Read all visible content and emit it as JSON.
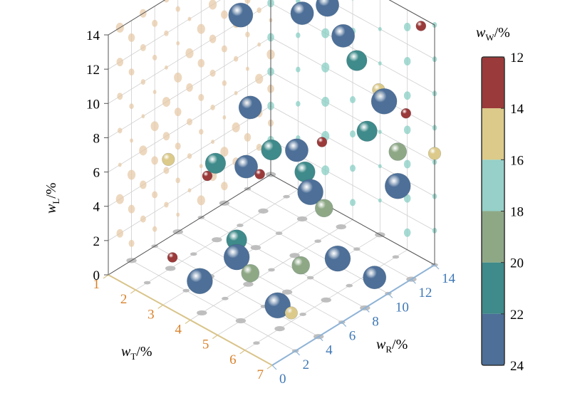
{
  "chart_data": {
    "type": "scatter",
    "x_axis": {
      "label": "w",
      "sub": "T",
      "unit": "/%",
      "ticks": [
        "1",
        "2",
        "3",
        "4",
        "5",
        "6",
        "7"
      ],
      "range": [
        1,
        7
      ],
      "color": "#d9822b"
    },
    "y_axis": {
      "label": "w",
      "sub": "R",
      "unit": "/%",
      "ticks": [
        "0",
        "2",
        "4",
        "6",
        "8",
        "10",
        "12",
        "14"
      ],
      "range": [
        0,
        14
      ],
      "color": "#3f78b5"
    },
    "z_axis": {
      "label": "w",
      "sub": "L",
      "unit": "/%",
      "ticks": [
        "0",
        "2",
        "4",
        "6",
        "8",
        "10",
        "12",
        "14"
      ],
      "range": [
        0,
        14
      ],
      "color": "#000000"
    },
    "colorbar": {
      "label": "w",
      "sub": "W",
      "unit": "/%",
      "ticks": [
        "12",
        "14",
        "16",
        "18",
        "20",
        "22",
        "24"
      ],
      "range": [
        12,
        24
      ],
      "bands": [
        "#9b3a3a",
        "#dcca8a",
        "#96d0c8",
        "#8ea886",
        "#3f8a8a",
        "#4d6f98"
      ]
    },
    "grid": true,
    "points": [
      {
        "t": 1.2,
        "r": 13.5,
        "l": 14.0,
        "w": 24
      },
      {
        "t": 2.5,
        "r": 14.0,
        "l": 13.6,
        "w": 24
      },
      {
        "t": 1.9,
        "r": 11.0,
        "l": 13.4,
        "w": 24
      },
      {
        "t": 3.5,
        "r": 13.0,
        "l": 12.5,
        "w": 22
      },
      {
        "t": 2.0,
        "r": 14.0,
        "l": 14.5,
        "w": 20
      },
      {
        "t": 4.0,
        "r": 12.0,
        "l": 14.5,
        "w": 22
      },
      {
        "t": 3.0,
        "r": 12.0,
        "l": 12.0,
        "w": 22
      },
      {
        "t": 1.6,
        "r": 10.0,
        "l": 11.5,
        "w": 23
      },
      {
        "t": 4.5,
        "r": 12.0,
        "l": 12.0,
        "w": 22
      },
      {
        "t": 5.0,
        "r": 12.0,
        "l": 11.0,
        "w": 20
      },
      {
        "t": 5.8,
        "r": 12.0,
        "l": 10.0,
        "w": 14
      },
      {
        "t": 2.8,
        "r": 8.0,
        "l": 8.0,
        "w": 22
      },
      {
        "t": 2.5,
        "r": 5.0,
        "l": 5.0,
        "w": 12
      },
      {
        "t": 4.0,
        "r": 7.0,
        "l": 7.0,
        "w": 20
      },
      {
        "t": 4.5,
        "r": 8.0,
        "l": 7.0,
        "w": 22
      },
      {
        "t": 5.0,
        "r": 9.0,
        "l": 7.5,
        "w": 12
      },
      {
        "t": 5.8,
        "r": 11.0,
        "l": 8.0,
        "w": 20
      },
      {
        "t": 6.0,
        "r": 12.0,
        "l": 9.5,
        "w": 24
      },
      {
        "t": 6.5,
        "r": 14.0,
        "l": 13.5,
        "w": 12
      },
      {
        "t": 6.8,
        "r": 12.0,
        "l": 9.5,
        "w": 12
      },
      {
        "t": 1.5,
        "r": 4.0,
        "l": 5.5,
        "w": 14
      },
      {
        "t": 2.8,
        "r": 5.0,
        "l": 6.0,
        "w": 20
      },
      {
        "t": 3.5,
        "r": 6.0,
        "l": 6.0,
        "w": 22
      },
      {
        "t": 4.0,
        "r": 6.0,
        "l": 6.0,
        "w": 12
      },
      {
        "t": 4.8,
        "r": 8.0,
        "l": 6.0,
        "w": 20
      },
      {
        "t": 5.0,
        "r": 8.0,
        "l": 5.0,
        "w": 24
      },
      {
        "t": 5.5,
        "r": 8.0,
        "l": 4.5,
        "w": 18
      },
      {
        "t": 6.5,
        "r": 12.0,
        "l": 7.0,
        "w": 18
      },
      {
        "t": 6.5,
        "r": 12.0,
        "l": 5.0,
        "w": 24
      },
      {
        "t": 7.0,
        "r": 14.0,
        "l": 6.5,
        "w": 14
      },
      {
        "t": 2.5,
        "r": 2.0,
        "l": 1.5,
        "w": 12
      },
      {
        "t": 4.0,
        "r": 4.0,
        "l": 3.0,
        "w": 20
      },
      {
        "t": 4.0,
        "r": 4.0,
        "l": 2.0,
        "w": 24
      },
      {
        "t": 4.5,
        "r": 4.0,
        "l": 1.5,
        "w": 18
      },
      {
        "t": 5.5,
        "r": 6.0,
        "l": 2.0,
        "w": 18
      },
      {
        "t": 6.0,
        "r": 8.0,
        "l": 2.0,
        "w": 24
      },
      {
        "t": 3.5,
        "r": 2.0,
        "l": 1.0,
        "w": 24
      },
      {
        "t": 5.5,
        "r": 4.0,
        "l": 0.5,
        "w": 24
      },
      {
        "t": 6.0,
        "r": 4.0,
        "l": 0.5,
        "w": 14
      },
      {
        "t": 6.5,
        "r": 10.0,
        "l": 0.5,
        "w": 22
      }
    ]
  }
}
